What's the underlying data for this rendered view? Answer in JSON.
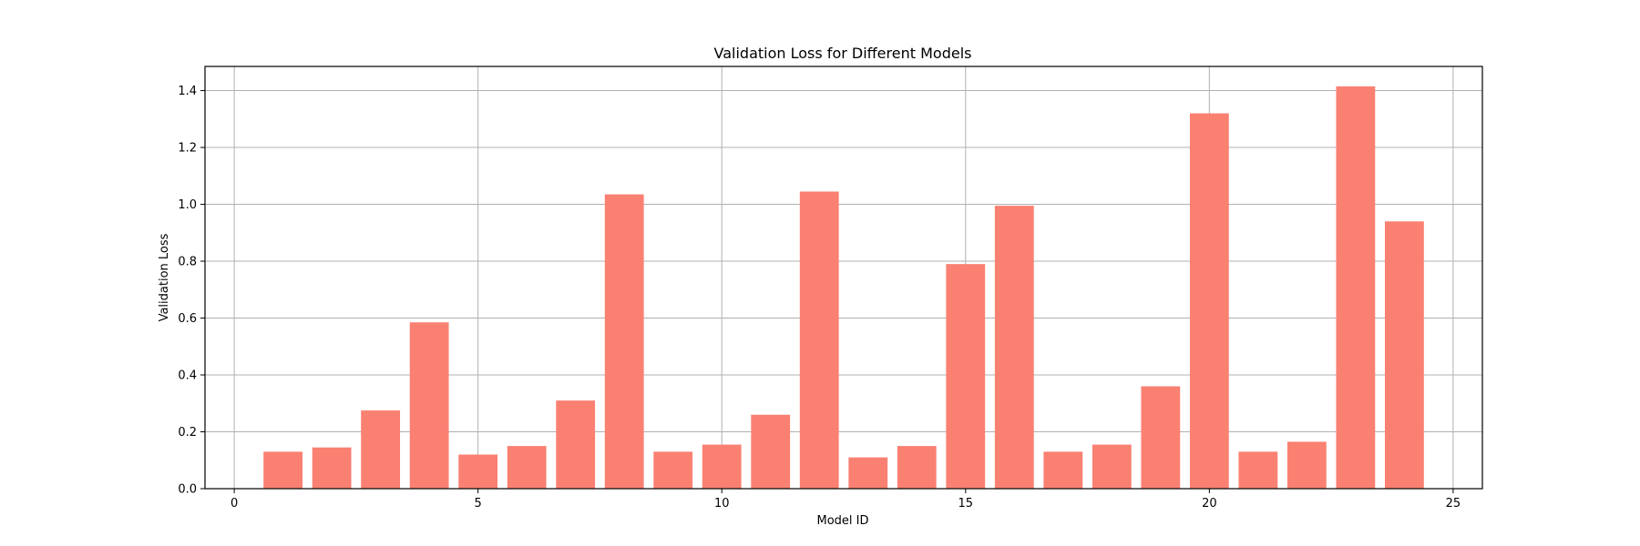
{
  "chart_data": {
    "type": "bar",
    "title": "Validation Loss for Different Models",
    "xlabel": "Model ID",
    "ylabel": "Validation Loss",
    "x": [
      1,
      2,
      3,
      4,
      5,
      6,
      7,
      8,
      9,
      10,
      11,
      12,
      13,
      14,
      15,
      16,
      17,
      18,
      19,
      20,
      21,
      22,
      23,
      24
    ],
    "values": [
      0.13,
      0.145,
      0.275,
      0.585,
      0.12,
      0.15,
      0.31,
      1.035,
      0.13,
      0.155,
      0.26,
      1.045,
      0.11,
      0.15,
      0.79,
      0.995,
      0.13,
      0.155,
      0.36,
      1.32,
      0.13,
      0.165,
      1.415,
      0.94
    ],
    "xlim": [
      -0.6,
      25.6
    ],
    "ylim": [
      0,
      1.485
    ],
    "xticks": [
      0,
      5,
      10,
      15,
      20,
      25
    ],
    "yticks": [
      0.0,
      0.2,
      0.4,
      0.6,
      0.8,
      1.0,
      1.2,
      1.4
    ],
    "xtick_labels": [
      "0",
      "5",
      "10",
      "15",
      "20",
      "25"
    ],
    "ytick_labels": [
      "0.0",
      "0.2",
      "0.4",
      "0.6",
      "0.8",
      "1.0",
      "1.2",
      "1.4"
    ],
    "grid": true,
    "bar_width": 0.8,
    "bar_color": "#fa8072"
  }
}
